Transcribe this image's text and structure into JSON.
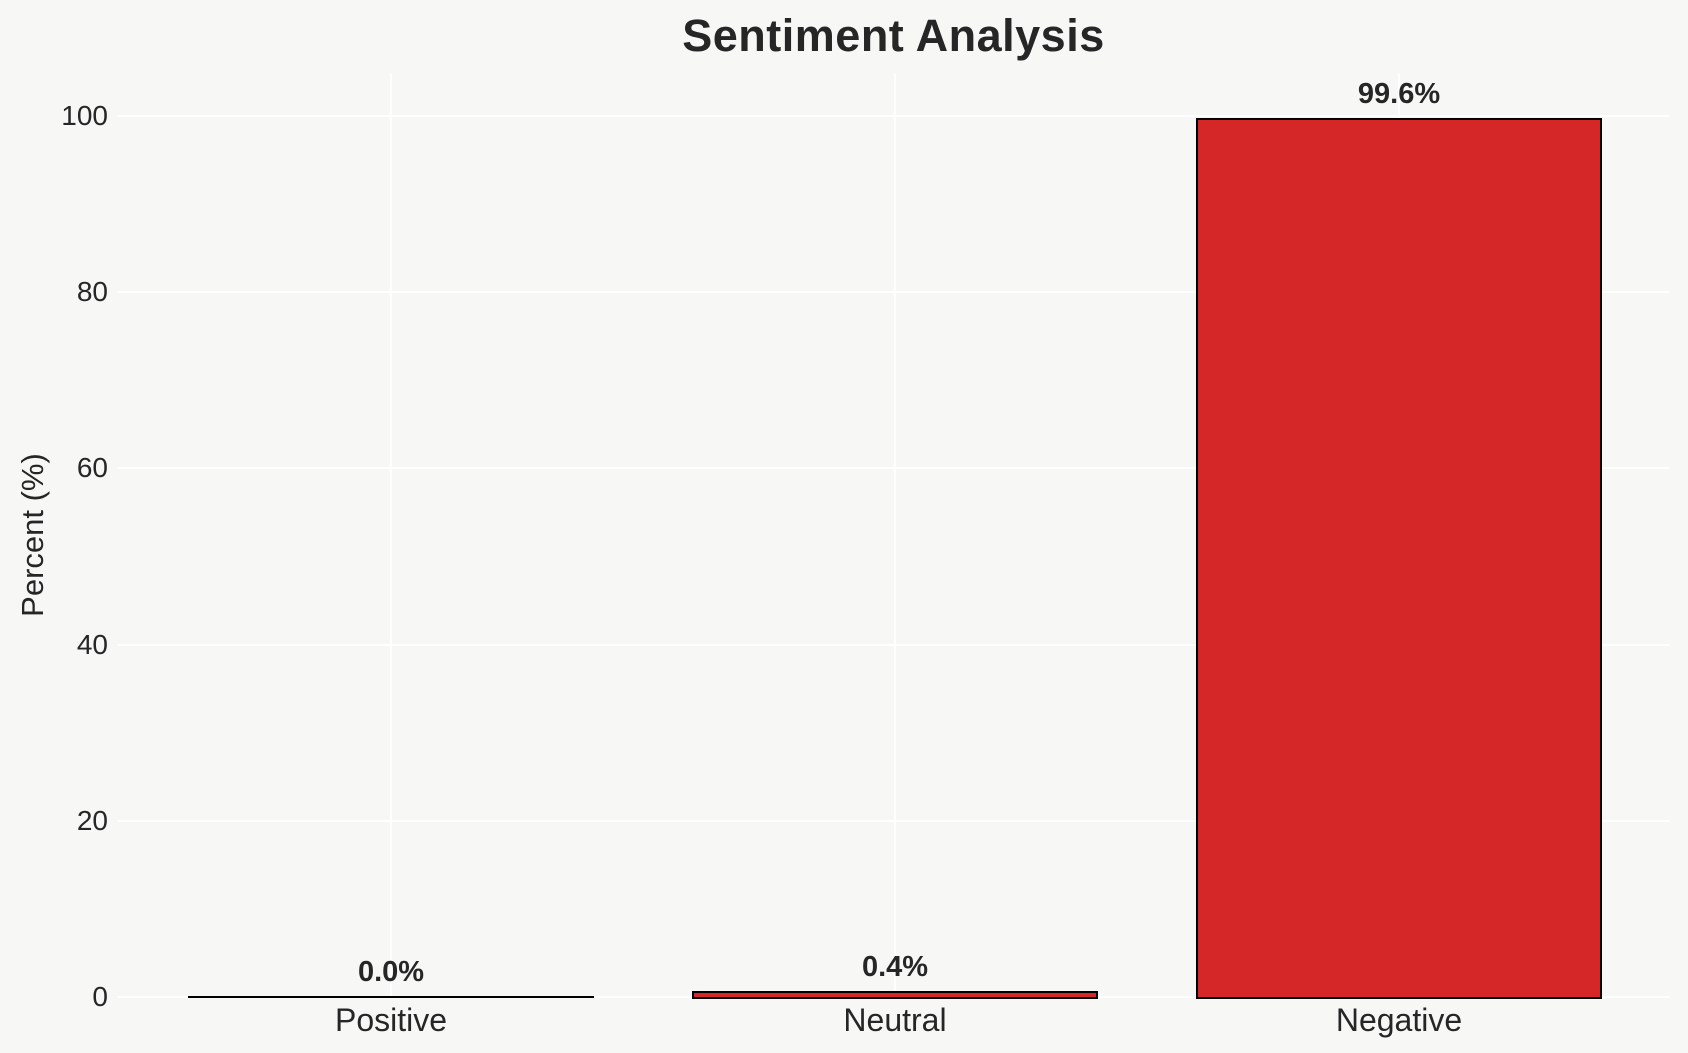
{
  "chart_data": {
    "type": "bar",
    "title": "Sentiment Analysis",
    "ylabel": "Percent (%)",
    "xlabel": "",
    "categories": [
      "Positive",
      "Neutral",
      "Negative"
    ],
    "values": [
      0.0,
      0.4,
      99.6
    ],
    "bar_labels": [
      "0.0%",
      "0.4%",
      "99.6%"
    ],
    "yticks": [
      0,
      20,
      40,
      60,
      80,
      100
    ],
    "ylim": [
      0,
      105
    ],
    "grid": true,
    "legend_position": "none",
    "colors": {
      "bar_fill": "#d62728",
      "bar_edge": "#000000",
      "background": "#f7f7f6",
      "gridline": "#ffffff",
      "text": "#262626"
    }
  }
}
